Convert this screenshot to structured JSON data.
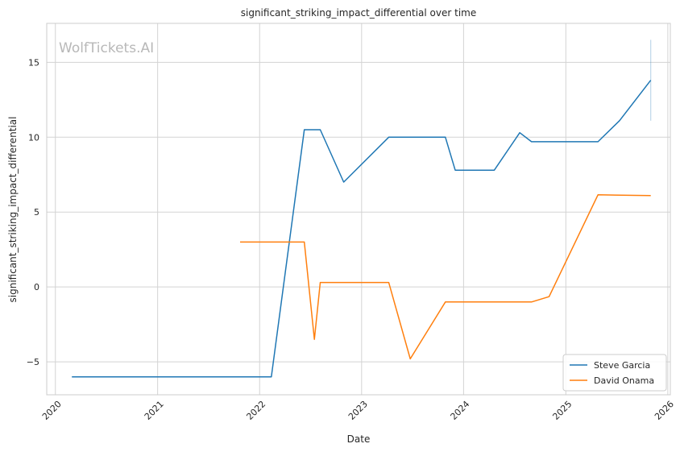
{
  "watermark": "WolfTickets.AI",
  "colors": {
    "steve": "#1f77b4",
    "david": "#ff7f0e",
    "grid": "#d3d3d3",
    "frame": "#cccccc"
  },
  "chart_data": {
    "type": "line",
    "title": "significant_striking_impact_differential over time",
    "xlabel": "Date",
    "ylabel": "significant_striking_impact_differential",
    "xlim": [
      "2019-12-01",
      "2026-01-10"
    ],
    "ylim": [
      -7.2,
      17.6
    ],
    "x_ticks": [
      "2020",
      "2021",
      "2022",
      "2023",
      "2024",
      "2025",
      "2026"
    ],
    "y_ticks": [
      -5,
      0,
      5,
      10,
      15
    ],
    "grid": true,
    "legend_position": "bottom-right",
    "series": [
      {
        "name": "Steve Garcia",
        "color": "#1f77b4",
        "points": [
          [
            "2020-02-29",
            -6.0
          ],
          [
            "2022-02-12",
            -6.0
          ],
          [
            "2022-06-10",
            10.5
          ],
          [
            "2022-08-06",
            10.5
          ],
          [
            "2022-10-29",
            7.0
          ],
          [
            "2023-04-08",
            10.0
          ],
          [
            "2023-10-28",
            10.0
          ],
          [
            "2023-12-02",
            7.8
          ],
          [
            "2024-04-20",
            7.8
          ],
          [
            "2024-07-20",
            10.3
          ],
          [
            "2024-08-31",
            9.7
          ],
          [
            "2025-04-26",
            9.7
          ],
          [
            "2025-07-12",
            11.1
          ],
          [
            "2025-11-01",
            13.8
          ]
        ],
        "error_bar": {
          "x": "2025-11-01",
          "low": 11.1,
          "high": 16.5
        }
      },
      {
        "name": "David Onama",
        "color": "#ff7f0e",
        "points": [
          [
            "2021-10-23",
            3.0
          ],
          [
            "2022-06-10",
            3.0
          ],
          [
            "2022-07-16",
            -3.5
          ],
          [
            "2022-08-06",
            0.3
          ],
          [
            "2023-04-08",
            0.3
          ],
          [
            "2023-06-24",
            -4.8
          ],
          [
            "2023-10-28",
            -1.0
          ],
          [
            "2024-08-31",
            -1.0
          ],
          [
            "2024-11-02",
            -0.65
          ],
          [
            "2025-04-26",
            6.15
          ],
          [
            "2025-11-01",
            6.1
          ]
        ]
      }
    ]
  }
}
